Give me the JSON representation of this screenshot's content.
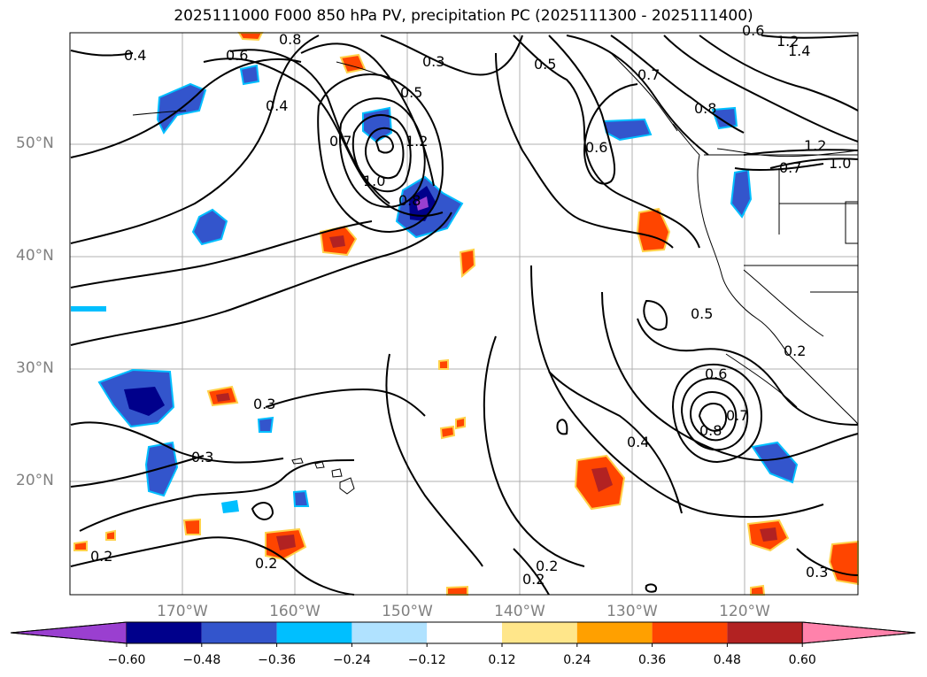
{
  "title": "2025111000 F000 850 hPa PV, precipitation PC (2025111300 - 2025111400)",
  "map": {
    "lat_labels": [
      {
        "label": "50°N",
        "lat": 50
      },
      {
        "label": "40°N",
        "lat": 40
      },
      {
        "label": "30°N",
        "lat": 30
      },
      {
        "label": "20°N",
        "lat": 20
      }
    ],
    "lon_labels": [
      {
        "label": "170°W",
        "lon": -170
      },
      {
        "label": "160°W",
        "lon": -160
      },
      {
        "label": "150°W",
        "lon": -150
      },
      {
        "label": "140°W",
        "lon": -140
      },
      {
        "label": "130°W",
        "lon": -130
      },
      {
        "label": "120°W",
        "lon": -120
      }
    ],
    "contour_labels": [
      "0.4",
      "0.6",
      "0.8",
      "0.4",
      "0.3",
      "0.5",
      "0.7",
      "1.2",
      "1.0",
      "0.8",
      "0.5",
      "0.7",
      "0.6",
      "0.8",
      "0.6",
      "1.2",
      "1.4",
      "1.2",
      "1.0",
      "0.7",
      "0.5",
      "0.6",
      "0.7",
      "0.8",
      "0.4",
      "0.2",
      "0.3",
      "0.3",
      "0.2",
      "0.2",
      "0.2",
      "0.2",
      "0.3"
    ]
  },
  "colorbar": {
    "ticks": [
      "−0.60",
      "−0.48",
      "−0.36",
      "−0.24",
      "−0.12",
      "0.12",
      "0.24",
      "0.36",
      "0.48",
      "0.60"
    ],
    "colors": [
      "#9a3fd0",
      "#00008b",
      "#3355cc",
      "#00bfff",
      "#b0e2ff",
      "#ffffff",
      "#ffe68a",
      "#ffa000",
      "#ff4500",
      "#b22222",
      "#ff82ab"
    ]
  }
}
